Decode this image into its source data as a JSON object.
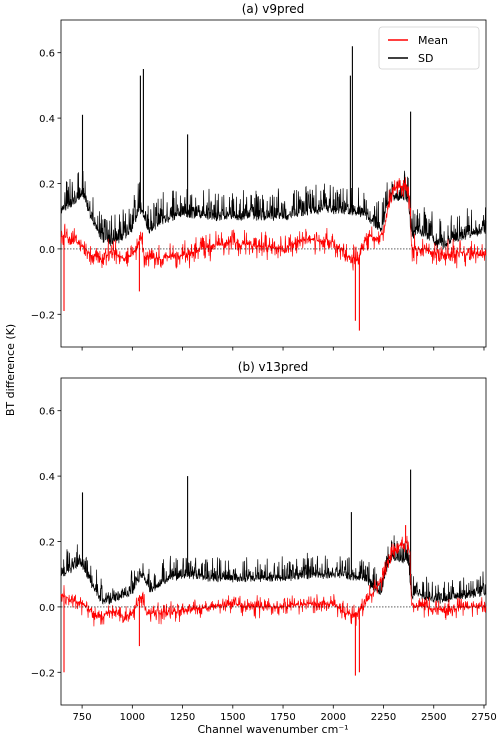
{
  "figure": {
    "ylabel": "BT difference (K)",
    "xlabel": "Channel wavenumber cm⁻¹"
  },
  "chart_data": [
    {
      "type": "line",
      "title": "(a) v9pred",
      "xlim": [
        645,
        2760
      ],
      "ylim": [
        -0.3,
        0.7
      ],
      "xticks": [
        750,
        1000,
        1250,
        1500,
        1750,
        2000,
        2250,
        2500,
        2750
      ],
      "yticks": [
        -0.2,
        0.0,
        0.2,
        0.4,
        0.6
      ],
      "ytick_labels": [
        "−0.2",
        "0.0",
        "0.2",
        "0.4",
        "0.6"
      ],
      "show_xtick_labels": false,
      "zero_line": true,
      "legend": {
        "position": "top-right"
      },
      "series": [
        {
          "name": "SD",
          "color": "#000000",
          "base": [
            [
              645,
              0.12
            ],
            [
              700,
              0.14
            ],
            [
              750,
              0.17
            ],
            [
              800,
              0.09
            ],
            [
              850,
              0.03
            ],
            [
              900,
              0.02
            ],
            [
              960,
              0.04
            ],
            [
              1000,
              0.06
            ],
            [
              1030,
              0.12
            ],
            [
              1050,
              0.12
            ],
            [
              1080,
              0.05
            ],
            [
              1150,
              0.09
            ],
            [
              1250,
              0.11
            ],
            [
              1400,
              0.1
            ],
            [
              1500,
              0.1
            ],
            [
              1600,
              0.1
            ],
            [
              1750,
              0.1
            ],
            [
              1900,
              0.12
            ],
            [
              2050,
              0.12
            ],
            [
              2150,
              0.11
            ],
            [
              2200,
              0.08
            ],
            [
              2240,
              0.06
            ],
            [
              2270,
              0.14
            ],
            [
              2300,
              0.16
            ],
            [
              2340,
              0.16
            ],
            [
              2375,
              0.15
            ],
            [
              2390,
              0.03
            ],
            [
              2410,
              0.06
            ],
            [
              2450,
              0.05
            ],
            [
              2500,
              0.02
            ],
            [
              2550,
              0.01
            ],
            [
              2600,
              0.03
            ],
            [
              2700,
              0.05
            ],
            [
              2760,
              0.06
            ]
          ],
          "spikes": [
            [
              752,
              0.41
            ],
            [
              1040,
              0.53
            ],
            [
              1055,
              0.55
            ],
            [
              1275,
              0.35
            ],
            [
              2085,
              0.53
            ],
            [
              2095,
              0.62
            ],
            [
              2385,
              0.42
            ]
          ],
          "noise": 0.09
        },
        {
          "name": "Mean",
          "color": "#ff0000",
          "base": [
            [
              645,
              0.04
            ],
            [
              700,
              0.03
            ],
            [
              750,
              0.01
            ],
            [
              800,
              -0.02
            ],
            [
              850,
              -0.03
            ],
            [
              900,
              -0.01
            ],
            [
              960,
              -0.03
            ],
            [
              1000,
              -0.02
            ],
            [
              1030,
              0.02
            ],
            [
              1045,
              0.03
            ],
            [
              1060,
              -0.02
            ],
            [
              1150,
              -0.03
            ],
            [
              1250,
              -0.02
            ],
            [
              1400,
              0.01
            ],
            [
              1500,
              0.02
            ],
            [
              1600,
              0.01
            ],
            [
              1750,
              0.0
            ],
            [
              1850,
              0.03
            ],
            [
              2000,
              0.02
            ],
            [
              2060,
              -0.02
            ],
            [
              2120,
              -0.03
            ],
            [
              2180,
              0.04
            ],
            [
              2220,
              0.03
            ],
            [
              2250,
              0.05
            ],
            [
              2280,
              0.16
            ],
            [
              2320,
              0.19
            ],
            [
              2360,
              0.19
            ],
            [
              2380,
              0.16
            ],
            [
              2390,
              0.0
            ],
            [
              2450,
              0.0
            ],
            [
              2550,
              -0.02
            ],
            [
              2650,
              -0.01
            ],
            [
              2760,
              -0.02
            ]
          ],
          "spikes": [
            [
              660,
              -0.19
            ],
            [
              1035,
              -0.13
            ],
            [
              1050,
              0.05
            ],
            [
              2110,
              -0.22
            ],
            [
              2130,
              -0.25
            ],
            [
              2350,
              0.21
            ]
          ],
          "noise": 0.05
        }
      ]
    },
    {
      "type": "line",
      "title": "(b) v13pred",
      "xlim": [
        645,
        2760
      ],
      "ylim": [
        -0.3,
        0.7
      ],
      "xticks": [
        750,
        1000,
        1250,
        1500,
        1750,
        2000,
        2250,
        2500,
        2750
      ],
      "xtick_labels": [
        "750",
        "1000",
        "1250",
        "1500",
        "1750",
        "2000",
        "2250",
        "2500",
        "2750"
      ],
      "yticks": [
        -0.2,
        0.0,
        0.2,
        0.4,
        0.6
      ],
      "ytick_labels": [
        "−0.2",
        "0.0",
        "0.2",
        "0.4",
        "0.6"
      ],
      "show_xtick_labels": true,
      "zero_line": true,
      "series": [
        {
          "name": "SD",
          "color": "#000000",
          "base": [
            [
              645,
              0.1
            ],
            [
              700,
              0.12
            ],
            [
              750,
              0.13
            ],
            [
              800,
              0.07
            ],
            [
              850,
              0.02
            ],
            [
              900,
              0.02
            ],
            [
              960,
              0.04
            ],
            [
              1000,
              0.05
            ],
            [
              1040,
              0.1
            ],
            [
              1060,
              0.09
            ],
            [
              1090,
              0.05
            ],
            [
              1150,
              0.08
            ],
            [
              1250,
              0.1
            ],
            [
              1400,
              0.09
            ],
            [
              1500,
              0.09
            ],
            [
              1600,
              0.09
            ],
            [
              1750,
              0.09
            ],
            [
              1900,
              0.1
            ],
            [
              2050,
              0.1
            ],
            [
              2150,
              0.09
            ],
            [
              2200,
              0.06
            ],
            [
              2240,
              0.05
            ],
            [
              2270,
              0.13
            ],
            [
              2300,
              0.15
            ],
            [
              2340,
              0.15
            ],
            [
              2375,
              0.14
            ],
            [
              2390,
              0.03
            ],
            [
              2410,
              0.05
            ],
            [
              2450,
              0.03
            ],
            [
              2500,
              0.02
            ],
            [
              2600,
              0.03
            ],
            [
              2700,
              0.04
            ],
            [
              2760,
              0.05
            ]
          ],
          "spikes": [
            [
              752,
              0.35
            ],
            [
              1275,
              0.4
            ],
            [
              2090,
              0.29
            ],
            [
              2385,
              0.42
            ]
          ],
          "noise": 0.07
        },
        {
          "name": "Mean",
          "color": "#ff0000",
          "base": [
            [
              645,
              0.04
            ],
            [
              700,
              0.02
            ],
            [
              750,
              0.01
            ],
            [
              800,
              -0.02
            ],
            [
              850,
              -0.03
            ],
            [
              900,
              -0.01
            ],
            [
              960,
              -0.03
            ],
            [
              1000,
              -0.02
            ],
            [
              1040,
              0.03
            ],
            [
              1055,
              0.02
            ],
            [
              1070,
              -0.02
            ],
            [
              1150,
              -0.02
            ],
            [
              1250,
              -0.01
            ],
            [
              1400,
              0.0
            ],
            [
              1500,
              0.01
            ],
            [
              1600,
              0.0
            ],
            [
              1750,
              0.0
            ],
            [
              1850,
              0.01
            ],
            [
              2000,
              0.01
            ],
            [
              2060,
              -0.02
            ],
            [
              2120,
              -0.02
            ],
            [
              2180,
              0.03
            ],
            [
              2230,
              0.07
            ],
            [
              2260,
              0.12
            ],
            [
              2290,
              0.17
            ],
            [
              2330,
              0.19
            ],
            [
              2360,
              0.2
            ],
            [
              2380,
              0.17
            ],
            [
              2390,
              0.0
            ],
            [
              2450,
              0.0
            ],
            [
              2550,
              -0.01
            ],
            [
              2650,
              0.0
            ],
            [
              2760,
              0.0
            ]
          ],
          "spikes": [
            [
              660,
              -0.2
            ],
            [
              1035,
              -0.12
            ],
            [
              2110,
              -0.21
            ],
            [
              2130,
              -0.2
            ],
            [
              2360,
              0.25
            ]
          ],
          "noise": 0.04
        }
      ]
    }
  ]
}
